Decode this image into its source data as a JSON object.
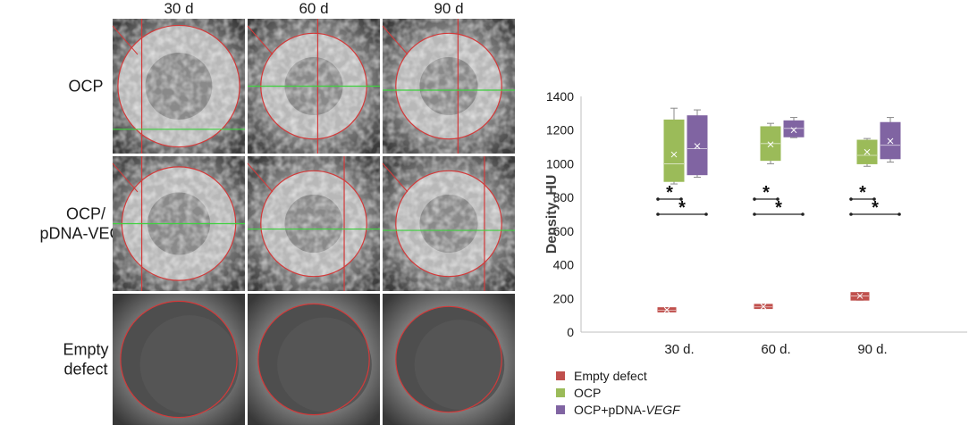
{
  "grid": {
    "columns": [
      "30 d",
      "60 d",
      "90 d"
    ],
    "rows": [
      {
        "key": "ocp",
        "label_lines": [
          "OCP"
        ],
        "shows_crosshair": true,
        "bright": true
      },
      {
        "key": "ocp-vegf",
        "label_lines": [
          "OCP/",
          "pDNA-VEGF"
        ],
        "shows_crosshair": true,
        "bright": true
      },
      {
        "key": "empty",
        "label_lines": [
          "Empty",
          "defect"
        ],
        "shows_crosshair": false,
        "bright": false
      }
    ]
  },
  "colors": {
    "empty_defect": "#c0504d",
    "ocp": "#9bbb59",
    "ocp_vegf": "#8064a2",
    "circle": "#d33a3a",
    "crosshair_green": "#3fd13f",
    "axis": "#bfbfbf",
    "text": "#1a1a1a"
  },
  "chart_data": {
    "type": "box",
    "categories": [
      "30 d.",
      "60 d.",
      "90 d."
    ],
    "ylabel": "Density, HU",
    "ylim": [
      0,
      1400
    ],
    "yticks": [
      0,
      200,
      400,
      600,
      800,
      1000,
      1200,
      1400
    ],
    "grid": false,
    "legend_placement": "bottom",
    "series": [
      {
        "name": "Empty defect",
        "color": "#c0504d",
        "boxes": [
          {
            "min": 120,
            "q1": 120,
            "median": 130,
            "q3": 145,
            "max": 145,
            "mean": 132
          },
          {
            "min": 140,
            "q1": 140,
            "median": 150,
            "q3": 165,
            "max": 165,
            "mean": 152
          },
          {
            "min": 190,
            "q1": 190,
            "median": 215,
            "q3": 235,
            "max": 235,
            "mean": 215
          }
        ]
      },
      {
        "name": "OCP",
        "name_parts": [
          {
            "text": "OCP",
            "italic": false
          }
        ],
        "color": "#9bbb59",
        "boxes": [
          {
            "min": 880,
            "q1": 895,
            "median": 1000,
            "q3": 1260,
            "max": 1330,
            "mean": 1055
          },
          {
            "min": 1000,
            "q1": 1020,
            "median": 1120,
            "q3": 1220,
            "max": 1240,
            "mean": 1115
          },
          {
            "min": 985,
            "q1": 1000,
            "median": 1050,
            "q3": 1140,
            "max": 1150,
            "mean": 1070
          }
        ]
      },
      {
        "name": "OCP+pDNA-VEGF",
        "name_parts": [
          {
            "text": "OCP+pDNA-",
            "italic": false
          },
          {
            "text": "VEGF",
            "italic": true
          }
        ],
        "color": "#8064a2",
        "boxes": [
          {
            "min": 920,
            "q1": 935,
            "median": 1090,
            "q3": 1285,
            "max": 1320,
            "mean": 1105
          },
          {
            "min": 1155,
            "q1": 1160,
            "median": 1210,
            "q3": 1255,
            "max": 1275,
            "mean": 1200
          },
          {
            "min": 1010,
            "q1": 1030,
            "median": 1110,
            "q3": 1245,
            "max": 1275,
            "mean": 1135
          }
        ]
      }
    ],
    "significance": [
      {
        "category": 0,
        "y": 790,
        "span": "short",
        "label": "*"
      },
      {
        "category": 0,
        "y": 700,
        "span": "long",
        "label": "*"
      },
      {
        "category": 1,
        "y": 790,
        "span": "short",
        "label": "*"
      },
      {
        "category": 1,
        "y": 700,
        "span": "long",
        "label": "*"
      },
      {
        "category": 2,
        "y": 790,
        "span": "short",
        "label": "*"
      },
      {
        "category": 2,
        "y": 700,
        "span": "long",
        "label": "*"
      }
    ]
  }
}
